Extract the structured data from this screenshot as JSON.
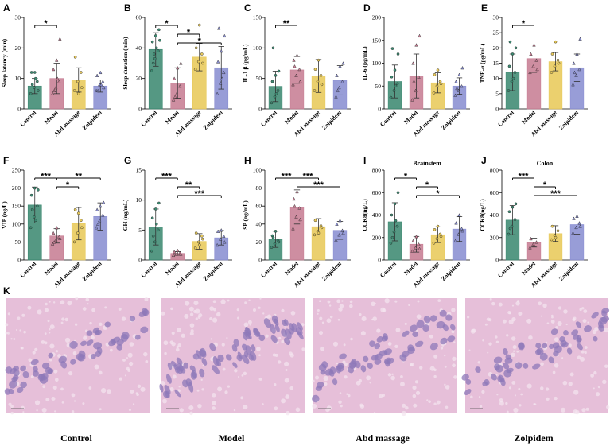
{
  "colors": {
    "Control": "#3d8a72",
    "Model": "#c77e94",
    "Abd massage": "#e8c95a",
    "Zolpidem": "#8a8fd2",
    "tissue_bg": "#e6bfd9",
    "tissue_cell": "#8e78b8"
  },
  "chart_data": [
    {
      "id": "A",
      "type": "bar",
      "categories": [
        "Control",
        "Model",
        "Abd massage",
        "Zolpidem"
      ],
      "values": [
        7.5,
        10,
        9.5,
        7.5
      ],
      "errors": [
        2.5,
        5,
        4,
        2
      ],
      "ylabel": "Sleep latency (min)",
      "title": "",
      "ylim": [
        0,
        30
      ],
      "yticks": [
        0,
        10,
        20,
        30
      ],
      "points": [
        [
          5,
          7,
          9,
          12,
          12,
          6,
          8,
          10
        ],
        [
          5,
          7,
          9,
          13,
          16,
          23,
          6,
          10
        ],
        [
          6,
          9,
          12,
          17,
          5,
          7
        ],
        [
          6,
          8,
          9,
          11,
          12,
          7,
          6,
          8
        ]
      ],
      "significance": [
        {
          "from": 0,
          "to": 1,
          "label": "*",
          "level": 0
        }
      ]
    },
    {
      "id": "B",
      "type": "bar",
      "categories": [
        "Control",
        "Model",
        "Abd massage",
        "Zolpidem"
      ],
      "values": [
        39,
        17,
        34,
        27
      ],
      "errors": [
        11,
        10,
        9,
        14
      ],
      "ylabel": "Sleep duration (min)",
      "title": "",
      "ylim": [
        0,
        60
      ],
      "yticks": [
        0,
        20,
        40,
        60
      ],
      "points": [
        [
          25,
          33,
          38,
          44,
          48,
          52,
          30,
          40,
          45,
          36
        ],
        [
          6,
          10,
          15,
          20,
          27,
          30,
          8
        ],
        [
          26,
          31,
          36,
          40,
          55,
          30
        ],
        [
          10,
          17,
          24,
          31,
          38,
          48,
          53,
          20
        ]
      ],
      "significance": [
        {
          "from": 0,
          "to": 1,
          "label": "*",
          "level": 0
        },
        {
          "from": 1,
          "to": 2,
          "label": "*",
          "level": 1
        },
        {
          "from": 1,
          "to": 3,
          "label": "*",
          "level": 2
        }
      ]
    },
    {
      "id": "C",
      "type": "bar",
      "categories": [
        "Control",
        "Model",
        "Abd massage",
        "Zolpidem"
      ],
      "values": [
        37,
        64,
        54,
        47
      ],
      "errors": [
        25,
        22,
        27,
        24
      ],
      "ylabel": "IL-1 β (pg/mL)",
      "title": "",
      "ylim": [
        0,
        150
      ],
      "yticks": [
        0,
        50,
        100,
        150
      ],
      "points": [
        [
          10,
          20,
          30,
          45,
          55,
          62,
          100,
          25
        ],
        [
          40,
          55,
          65,
          80,
          88,
          45,
          70
        ],
        [
          30,
          45,
          55,
          65,
          80,
          40
        ],
        [
          20,
          35,
          45,
          55,
          70,
          75,
          30
        ]
      ],
      "significance": [
        {
          "from": 0,
          "to": 1,
          "label": "**",
          "level": 0
        }
      ]
    },
    {
      "id": "D",
      "type": "bar",
      "categories": [
        "Control",
        "Model",
        "Abd massage",
        "Zolpidem"
      ],
      "values": [
        60,
        72,
        57,
        50
      ],
      "errors": [
        36,
        48,
        22,
        18
      ],
      "ylabel": "IL-6 (pg/mL)",
      "title": "",
      "ylim": [
        0,
        200
      ],
      "yticks": [
        0,
        50,
        100,
        150,
        200
      ],
      "points": [
        [
          25,
          40,
          55,
          70,
          85,
          120,
          132,
          50
        ],
        [
          20,
          40,
          70,
          100,
          140,
          160,
          60
        ],
        [
          35,
          50,
          60,
          75,
          85,
          55
        ],
        [
          30,
          40,
          50,
          60,
          75,
          90,
          45
        ]
      ],
      "significance": []
    },
    {
      "id": "E",
      "type": "bar",
      "categories": [
        "Control",
        "Model",
        "Abd massage",
        "Zolpidem"
      ],
      "values": [
        12,
        16.5,
        15.5,
        13.5
      ],
      "errors": [
        6,
        4.5,
        3,
        4.5
      ],
      "ylabel": "TNF-α (pg/mL)",
      "title": "",
      "ylim": [
        0,
        30
      ],
      "yticks": [
        0,
        5,
        10,
        15,
        20,
        25,
        30
      ],
      "points": [
        [
          6,
          9,
          12,
          14,
          18,
          20,
          22,
          10
        ],
        [
          12,
          14,
          16,
          18,
          21,
          13
        ],
        [
          12,
          14,
          16,
          18,
          22,
          15
        ],
        [
          8,
          11,
          13,
          15,
          18,
          23,
          12
        ]
      ],
      "significance": [
        {
          "from": 0,
          "to": 1,
          "label": "*",
          "level": 0
        }
      ]
    },
    {
      "id": "F",
      "type": "bar",
      "categories": [
        "Control",
        "Model",
        "Abd massage",
        "Zolpidem"
      ],
      "values": [
        153,
        67,
        101,
        121
      ],
      "errors": [
        50,
        20,
        45,
        38
      ],
      "ylabel": "VIP (ng/L)",
      "title": "",
      "ylim": [
        0,
        250
      ],
      "yticks": [
        0,
        50,
        100,
        150,
        200,
        250
      ],
      "points": [
        [
          90,
          120,
          150,
          180,
          200,
          195,
          140,
          110
        ],
        [
          45,
          55,
          65,
          75,
          90,
          60,
          50
        ],
        [
          50,
          75,
          110,
          140,
          130,
          90
        ],
        [
          90,
          110,
          125,
          140,
          150,
          160,
          100
        ]
      ],
      "significance": [
        {
          "from": 0,
          "to": 1,
          "label": "***",
          "level": 0
        },
        {
          "from": 1,
          "to": 3,
          "label": "**",
          "level": 0
        },
        {
          "from": 1,
          "to": 2,
          "label": "*",
          "level": 1
        }
      ]
    },
    {
      "id": "G",
      "type": "bar",
      "categories": [
        "Control",
        "Model",
        "Abd massage",
        "Zolpidem"
      ],
      "values": [
        5.5,
        1.1,
        3.1,
        3.7
      ],
      "errors": [
        3,
        0.3,
        1.3,
        1.2
      ],
      "ylabel": "GH (ng/mL)",
      "title": "",
      "ylim": [
        0,
        15
      ],
      "yticks": [
        0,
        5,
        10,
        15
      ],
      "points": [
        [
          1.5,
          3,
          5,
          7,
          8.5,
          9.5,
          4,
          6
        ],
        [
          0.8,
          1,
          1.2,
          1.4,
          1.6,
          1
        ],
        [
          2,
          3,
          4,
          4.5,
          2.5,
          3.5
        ],
        [
          2.5,
          3.5,
          4,
          4.8,
          5,
          3
        ]
      ],
      "significance": [
        {
          "from": 0,
          "to": 1,
          "label": "***",
          "level": 0
        },
        {
          "from": 1,
          "to": 2,
          "label": "**",
          "level": 1
        },
        {
          "from": 1,
          "to": 3,
          "label": "***",
          "level": 2
        }
      ]
    },
    {
      "id": "H",
      "type": "bar",
      "categories": [
        "Control",
        "Model",
        "Abd massage",
        "Zolpidem"
      ],
      "values": [
        23,
        59,
        37,
        33
      ],
      "errors": [
        9,
        19,
        9,
        10
      ],
      "ylabel": "SP (ng/mL)",
      "title": "",
      "ylim": [
        0,
        100
      ],
      "yticks": [
        0,
        20,
        40,
        60,
        80,
        100
      ],
      "points": [
        [
          14,
          18,
          22,
          27,
          32,
          20,
          25
        ],
        [
          35,
          48,
          58,
          68,
          76,
          45,
          60
        ],
        [
          28,
          32,
          38,
          44,
          30,
          36
        ],
        [
          22,
          28,
          33,
          40,
          44,
          30
        ]
      ],
      "significance": [
        {
          "from": 0,
          "to": 1,
          "label": "***",
          "level": 0
        },
        {
          "from": 1,
          "to": 2,
          "label": "***",
          "level": 0
        },
        {
          "from": 1,
          "to": 3,
          "label": "***",
          "level": 1
        }
      ]
    },
    {
      "id": "I",
      "type": "bar",
      "categories": [
        "Control",
        "Model",
        "Abd massage",
        "Zolpidem"
      ],
      "values": [
        340,
        140,
        225,
        275
      ],
      "errors": [
        170,
        70,
        70,
        110
      ],
      "ylabel": "CCK8(ng/L)",
      "title": "Brainstem",
      "ylim": [
        0,
        800
      ],
      "yticks": [
        0,
        200,
        400,
        600,
        800
      ],
      "points": [
        [
          150,
          250,
          300,
          400,
          500,
          600,
          200,
          350
        ],
        [
          80,
          110,
          140,
          170,
          210,
          100
        ],
        [
          150,
          190,
          230,
          270,
          300,
          210
        ],
        [
          170,
          230,
          280,
          330,
          400,
          260
        ]
      ],
      "significance": [
        {
          "from": 0,
          "to": 1,
          "label": "*",
          "level": 0
        },
        {
          "from": 1,
          "to": 2,
          "label": "*",
          "level": 1
        },
        {
          "from": 1,
          "to": 3,
          "label": "*",
          "level": 2
        }
      ]
    },
    {
      "id": "J",
      "type": "bar",
      "categories": [
        "Control",
        "Model",
        "Abd massage",
        "Zolpidem"
      ],
      "values": [
        355,
        155,
        235,
        315
      ],
      "errors": [
        130,
        40,
        70,
        85
      ],
      "ylabel": "CCK8(ng/L)",
      "title": "Colon",
      "ylim": [
        0,
        800
      ],
      "yticks": [
        0,
        200,
        400,
        600,
        800
      ],
      "points": [
        [
          230,
          300,
          360,
          430,
          470,
          500,
          280
        ],
        [
          110,
          140,
          160,
          190,
          130
        ],
        [
          180,
          220,
          260,
          300,
          200
        ],
        [
          240,
          290,
          330,
          370,
          390,
          300
        ]
      ],
      "significance": [
        {
          "from": 0,
          "to": 1,
          "label": "***",
          "level": 0
        },
        {
          "from": 1,
          "to": 2,
          "label": "*",
          "level": 1
        },
        {
          "from": 1,
          "to": 3,
          "label": "***",
          "level": 2
        }
      ]
    }
  ],
  "histology": {
    "letter": "K",
    "labels": [
      "Control",
      "Model",
      "Abd massage",
      "Zolpidem"
    ]
  }
}
